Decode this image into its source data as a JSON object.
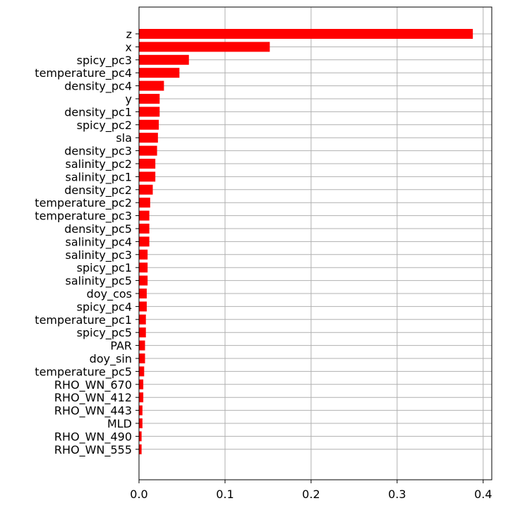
{
  "chart_data": {
    "type": "bar",
    "orientation": "horizontal",
    "categories": [
      "z",
      "x",
      "spicy_pc3",
      "temperature_pc4",
      "density_pc4",
      "y",
      "density_pc1",
      "spicy_pc2",
      "sla",
      "density_pc3",
      "salinity_pc2",
      "salinity_pc1",
      "density_pc2",
      "temperature_pc2",
      "temperature_pc3",
      "density_pc5",
      "salinity_pc4",
      "salinity_pc3",
      "spicy_pc1",
      "salinity_pc5",
      "doy_cos",
      "spicy_pc4",
      "temperature_pc1",
      "spicy_pc5",
      "PAR",
      "doy_sin",
      "temperature_pc5",
      "RHO_WN_670",
      "RHO_WN_412",
      "RHO_WN_443",
      "MLD",
      "RHO_WN_490",
      "RHO_WN_555"
    ],
    "values": [
      0.388,
      0.152,
      0.058,
      0.047,
      0.029,
      0.024,
      0.024,
      0.023,
      0.022,
      0.021,
      0.019,
      0.019,
      0.016,
      0.013,
      0.012,
      0.012,
      0.012,
      0.01,
      0.01,
      0.01,
      0.009,
      0.009,
      0.008,
      0.008,
      0.007,
      0.007,
      0.006,
      0.005,
      0.005,
      0.004,
      0.004,
      0.003,
      0.003
    ],
    "xlim": [
      0,
      0.41
    ],
    "xticks": [
      "0.0",
      "0.1",
      "0.2",
      "0.3",
      "0.4"
    ],
    "xtick_values": [
      0,
      0.1,
      0.2,
      0.3,
      0.4
    ],
    "title": "",
    "xlabel": "",
    "ylabel": "",
    "grid": true,
    "bar_color": "#ff0000",
    "grid_color": "#b0b0b0"
  }
}
